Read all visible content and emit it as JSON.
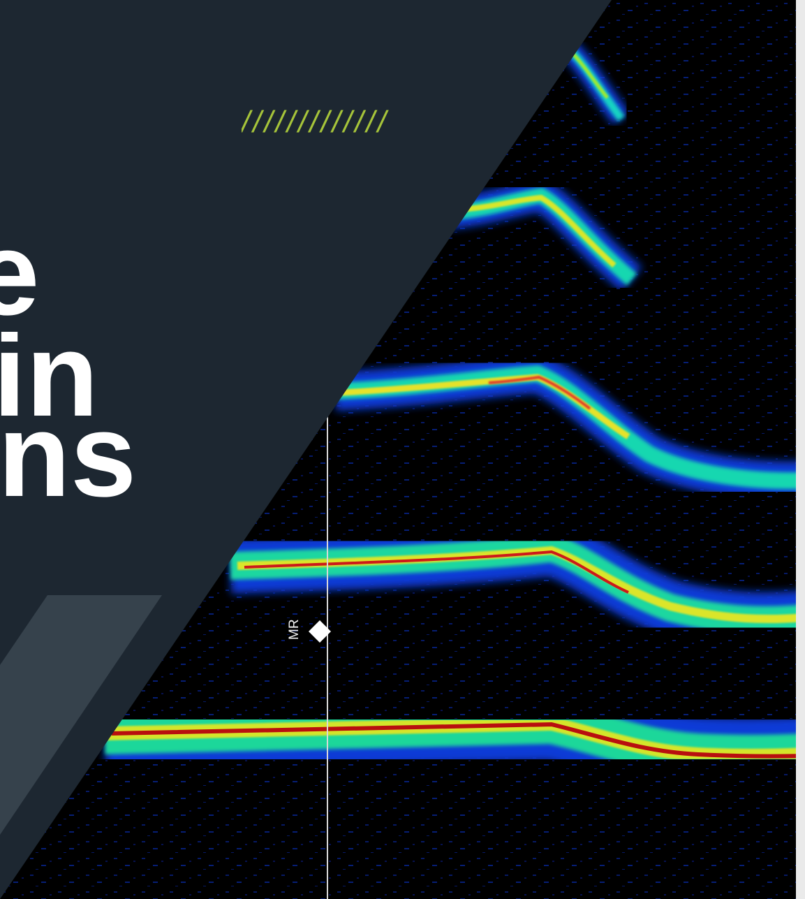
{
  "title": {
    "line1": "e",
    "line2": "in",
    "line3": "ns"
  },
  "decoration": {
    "slashes": "/////////////",
    "accent_color": "#a6c43a",
    "panel_color": "#1d2731",
    "shard_color": "#36424c"
  },
  "spectrogram": {
    "marker_label": "MR"
  }
}
